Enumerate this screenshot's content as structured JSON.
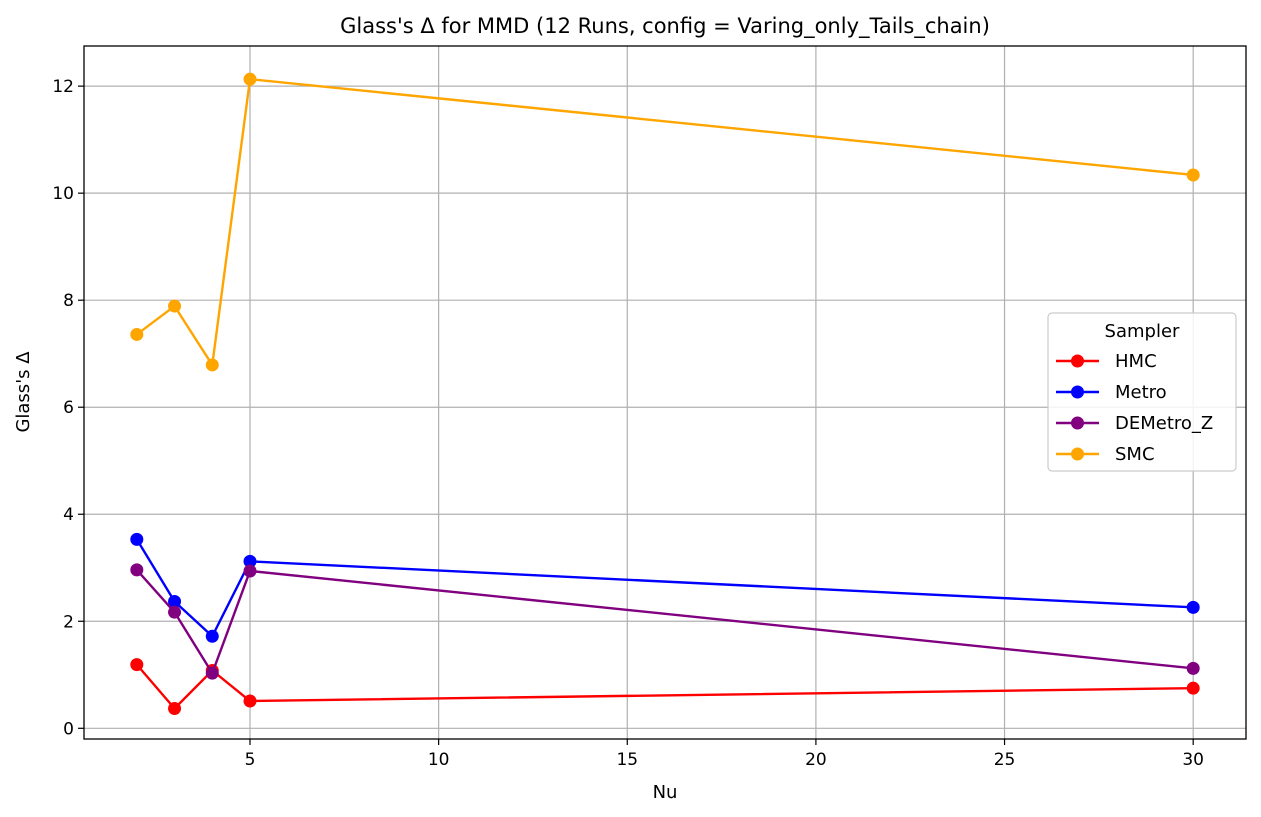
{
  "chart_data": {
    "type": "line",
    "title": "Glass's Δ for MMD (12 Runs, config = Varing_only_Tails_chain)",
    "xlabel": "Nu",
    "ylabel": "Glass's Δ",
    "xlim": [
      0.6,
      31.4
    ],
    "ylim": [
      -0.2,
      12.75
    ],
    "xticks": [
      5,
      10,
      15,
      20,
      25,
      30
    ],
    "yticks": [
      0,
      2,
      4,
      6,
      8,
      10,
      12
    ],
    "grid": true,
    "legend": {
      "title": "Sampler",
      "placement": "center-right"
    },
    "x": [
      2,
      3,
      4,
      5,
      30
    ],
    "series": [
      {
        "name": "HMC",
        "color": "#ff0000",
        "values": [
          1.19,
          0.37,
          1.08,
          0.51,
          0.75
        ]
      },
      {
        "name": "Metro",
        "color": "#0000ff",
        "values": [
          3.53,
          2.37,
          1.72,
          3.12,
          2.26
        ]
      },
      {
        "name": "DEMetro_Z",
        "color": "#800080",
        "values": [
          2.96,
          2.17,
          1.03,
          2.94,
          1.12
        ]
      },
      {
        "name": "SMC",
        "color": "#ffa500",
        "values": [
          7.36,
          7.89,
          6.79,
          12.13,
          10.34
        ]
      }
    ]
  }
}
